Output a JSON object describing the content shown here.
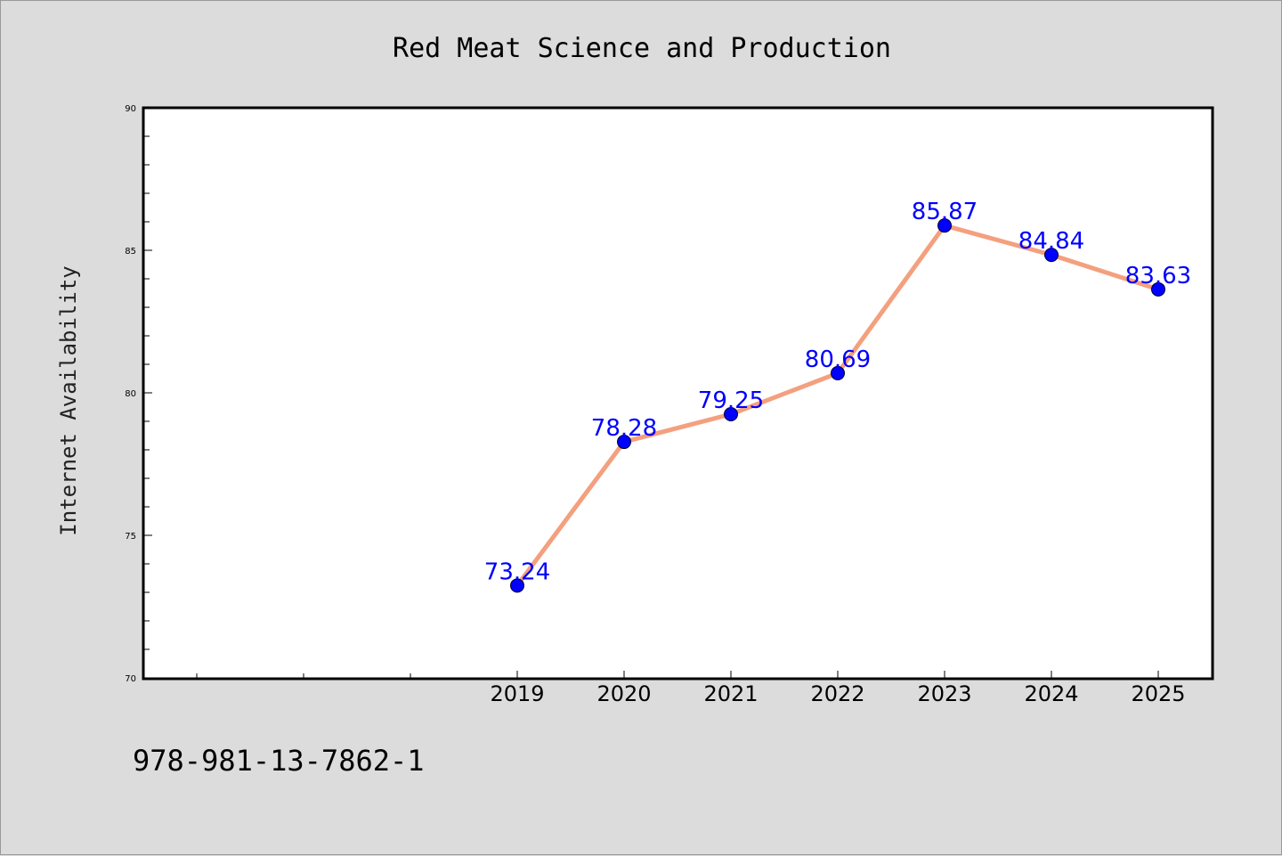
{
  "chart_data": {
    "type": "line",
    "title": "Red Meat Science and Production",
    "xlabel": "",
    "ylabel": "Internet Availability",
    "categories": [
      "2019",
      "2020",
      "2021",
      "2022",
      "2023",
      "2024",
      "2025"
    ],
    "series": [
      {
        "values": [
          73.24,
          78.28,
          79.25,
          80.69,
          85.87,
          84.84,
          83.63
        ]
      }
    ],
    "data_labels": [
      "73.24",
      "78.28",
      "79.25",
      "80.69",
      "85.87",
      "84.84",
      "83.63"
    ],
    "ylim": [
      70,
      90
    ],
    "yticks": [
      "70",
      "75",
      "80",
      "85",
      "90"
    ],
    "grid": false,
    "colors": {
      "line": "#f4a07f",
      "marker": "#0000ff",
      "label": "#0000ff",
      "background": "#dcdcdc",
      "plot_area": "#ffffff"
    }
  },
  "footer": {
    "text": "978-981-13-7862-1"
  }
}
